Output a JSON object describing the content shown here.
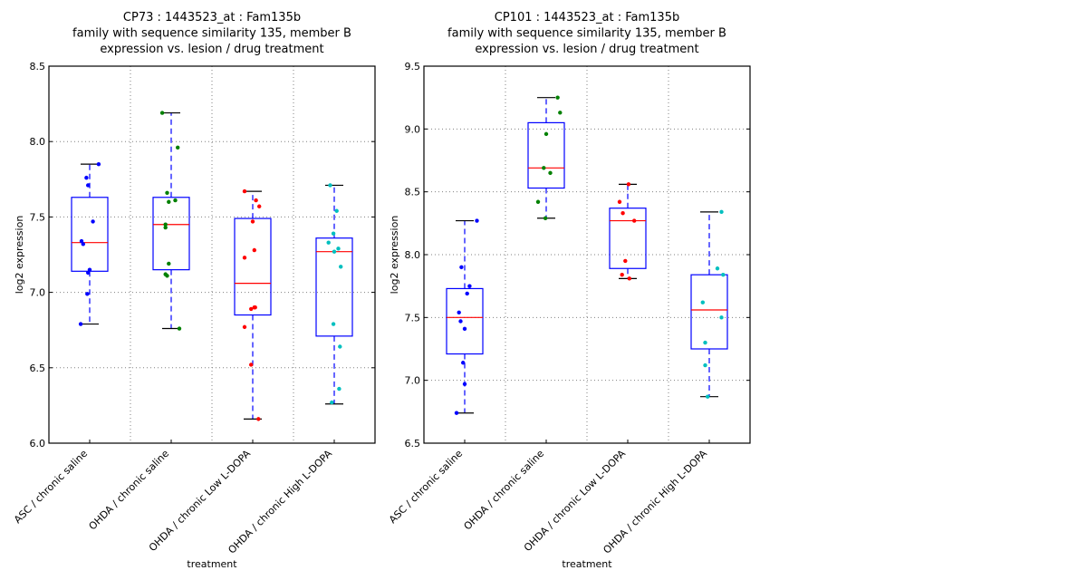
{
  "chart_data": [
    {
      "type": "box",
      "title": [
        "CP73 : 1443523_at : Fam135b",
        "family with sequence similarity 135, member B",
        "expression vs. lesion / drug treatment"
      ],
      "xlabel": "treatment",
      "ylabel": "log2 expression",
      "ylim": [
        6.0,
        8.5
      ],
      "yticks": [
        "6.0",
        "6.5",
        "7.0",
        "7.5",
        "8.0",
        "8.5"
      ],
      "grid": true,
      "categories": [
        "ASC / chronic saline",
        "OHDA / chronic saline",
        "OHDA / chronic Low L-DOPA",
        "OHDA / chronic High L-DOPA"
      ],
      "point_colors": [
        "#0000ff",
        "#008000",
        "#ff0000",
        "#00bfbf"
      ],
      "boxes": [
        {
          "whisker_low": 6.79,
          "q1": 7.14,
          "median": 7.33,
          "q3": 7.63,
          "whisker_high": 7.85
        },
        {
          "whisker_low": 6.76,
          "q1": 7.15,
          "median": 7.45,
          "q3": 7.63,
          "whisker_high": 8.19
        },
        {
          "whisker_low": 6.16,
          "q1": 6.85,
          "median": 7.06,
          "q3": 7.49,
          "whisker_high": 7.67
        },
        {
          "whisker_low": 6.26,
          "q1": 6.71,
          "median": 7.27,
          "q3": 7.36,
          "whisker_high": 7.71
        }
      ],
      "points": [
        [
          [
            0.11,
            7.85
          ],
          [
            -0.04,
            7.76
          ],
          [
            -0.02,
            7.71
          ],
          [
            0.04,
            7.47
          ],
          [
            -0.1,
            7.34
          ],
          [
            -0.08,
            7.32
          ],
          [
            0.0,
            7.15
          ],
          [
            -0.02,
            7.13
          ],
          [
            -0.03,
            6.99
          ],
          [
            -0.11,
            6.79
          ]
        ],
        [
          [
            -0.11,
            8.19
          ],
          [
            0.08,
            7.96
          ],
          [
            -0.05,
            7.66
          ],
          [
            -0.03,
            7.6
          ],
          [
            0.05,
            7.61
          ],
          [
            -0.07,
            7.45
          ],
          [
            -0.07,
            7.43
          ],
          [
            -0.03,
            7.19
          ],
          [
            -0.07,
            7.12
          ],
          [
            -0.05,
            7.11
          ],
          [
            0.1,
            6.76
          ]
        ],
        [
          [
            -0.1,
            7.67
          ],
          [
            0.04,
            7.61
          ],
          [
            0.08,
            7.57
          ],
          [
            0.0,
            7.47
          ],
          [
            0.02,
            7.28
          ],
          [
            -0.1,
            7.23
          ],
          [
            -0.02,
            6.89
          ],
          [
            0.02,
            6.9
          ],
          [
            0.03,
            6.9
          ],
          [
            -0.1,
            6.77
          ],
          [
            -0.02,
            6.52
          ],
          [
            0.07,
            6.16
          ]
        ],
        [
          [
            -0.05,
            7.71
          ],
          [
            0.03,
            7.54
          ],
          [
            -0.01,
            7.39
          ],
          [
            -0.07,
            7.33
          ],
          [
            0.05,
            7.29
          ],
          [
            0.0,
            7.27
          ],
          [
            0.08,
            7.17
          ],
          [
            -0.01,
            6.79
          ],
          [
            0.07,
            6.64
          ],
          [
            0.06,
            6.36
          ],
          [
            -0.03,
            6.27
          ]
        ]
      ]
    },
    {
      "type": "box",
      "title": [
        "CP101 : 1443523_at : Fam135b",
        "family with sequence similarity 135, member B",
        "expression vs. lesion / drug treatment"
      ],
      "xlabel": "treatment",
      "ylabel": "log2 expression",
      "ylim": [
        6.5,
        9.5
      ],
      "yticks": [
        "6.5",
        "7.0",
        "7.5",
        "8.0",
        "8.5",
        "9.0",
        "9.5"
      ],
      "grid": true,
      "categories": [
        "ASC / chronic saline",
        "OHDA / chronic saline",
        "OHDA / chronic Low L-DOPA",
        "OHDA / chronic High L-DOPA"
      ],
      "point_colors": [
        "#0000ff",
        "#008000",
        "#ff0000",
        "#00bfbf"
      ],
      "boxes": [
        {
          "whisker_low": 6.74,
          "q1": 7.21,
          "median": 7.5,
          "q3": 7.73,
          "whisker_high": 8.27
        },
        {
          "whisker_low": 8.29,
          "q1": 8.53,
          "median": 8.69,
          "q3": 9.05,
          "whisker_high": 9.25
        },
        {
          "whisker_low": 7.81,
          "q1": 7.89,
          "median": 8.27,
          "q3": 8.37,
          "whisker_high": 8.56
        },
        {
          "whisker_low": 6.87,
          "q1": 7.25,
          "median": 7.56,
          "q3": 7.84,
          "whisker_high": 8.34
        }
      ],
      "points": [
        [
          [
            0.15,
            8.27
          ],
          [
            -0.04,
            7.9
          ],
          [
            0.06,
            7.75
          ],
          [
            0.03,
            7.69
          ],
          [
            -0.07,
            7.54
          ],
          [
            -0.05,
            7.47
          ],
          [
            0.0,
            7.41
          ],
          [
            -0.02,
            7.14
          ],
          [
            0.0,
            6.97
          ],
          [
            -0.1,
            6.74
          ]
        ],
        [
          [
            0.14,
            9.25
          ],
          [
            0.17,
            9.13
          ],
          [
            0.0,
            8.96
          ],
          [
            -0.03,
            8.69
          ],
          [
            0.05,
            8.65
          ],
          [
            -0.1,
            8.42
          ],
          [
            -0.01,
            8.29
          ]
        ],
        [
          [
            0.01,
            8.56
          ],
          [
            -0.1,
            8.42
          ],
          [
            -0.06,
            8.33
          ],
          [
            0.08,
            8.27
          ],
          [
            -0.03,
            7.95
          ],
          [
            -0.07,
            7.84
          ],
          [
            0.02,
            7.81
          ]
        ],
        [
          [
            0.15,
            8.34
          ],
          [
            0.1,
            7.89
          ],
          [
            0.17,
            7.84
          ],
          [
            -0.08,
            7.62
          ],
          [
            0.15,
            7.5
          ],
          [
            -0.05,
            7.3
          ],
          [
            -0.05,
            7.12
          ],
          [
            -0.02,
            6.87
          ]
        ]
      ]
    }
  ]
}
